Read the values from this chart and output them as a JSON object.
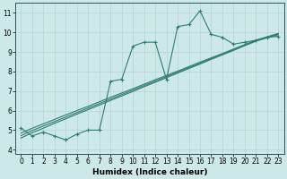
{
  "xlabel": "Humidex (Indice chaleur)",
  "ylabel": "",
  "bg_color": "#cde8e8",
  "line_color": "#2e7d6e",
  "x_data": [
    0,
    1,
    2,
    3,
    4,
    5,
    6,
    7,
    8,
    9,
    10,
    11,
    12,
    13,
    14,
    15,
    16,
    17,
    18,
    19,
    20,
    21,
    22,
    23
  ],
  "y_main": [
    5.1,
    4.7,
    4.9,
    4.7,
    4.5,
    4.8,
    5.0,
    5.0,
    7.5,
    7.6,
    9.3,
    9.5,
    9.5,
    7.6,
    10.3,
    10.4,
    11.1,
    9.9,
    9.75,
    9.4,
    9.5,
    9.6,
    9.75,
    9.8
  ],
  "y_line1": [
    4.6,
    4.87,
    5.1,
    5.35,
    5.58,
    5.82,
    6.05,
    6.28,
    6.52,
    6.75,
    6.98,
    7.22,
    7.45,
    7.68,
    7.92,
    8.15,
    8.38,
    8.62,
    8.85,
    9.08,
    9.32,
    9.55,
    9.72,
    9.88
  ],
  "y_line2": [
    4.85,
    5.1,
    5.32,
    5.55,
    5.78,
    6.0,
    6.22,
    6.45,
    6.68,
    6.9,
    7.12,
    7.35,
    7.58,
    7.8,
    8.02,
    8.25,
    8.48,
    8.7,
    8.92,
    9.15,
    9.38,
    9.6,
    9.78,
    9.95
  ],
  "y_line3": [
    4.72,
    4.98,
    5.21,
    5.44,
    5.67,
    5.9,
    6.13,
    6.36,
    6.59,
    6.82,
    7.05,
    7.28,
    7.51,
    7.74,
    7.97,
    8.2,
    8.43,
    8.66,
    8.89,
    9.12,
    9.35,
    9.58,
    9.75,
    9.92
  ],
  "xlim": [
    -0.5,
    23.5
  ],
  "ylim": [
    3.8,
    11.5
  ],
  "yticks": [
    4,
    5,
    6,
    7,
    8,
    9,
    10,
    11
  ],
  "xticks": [
    0,
    1,
    2,
    3,
    4,
    5,
    6,
    7,
    8,
    9,
    10,
    11,
    12,
    13,
    14,
    15,
    16,
    17,
    18,
    19,
    20,
    21,
    22,
    23
  ],
  "xlabel_fontsize": 6.5,
  "tick_fontsize": 5.5
}
